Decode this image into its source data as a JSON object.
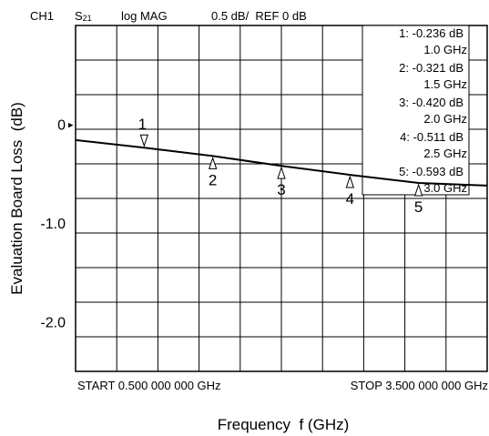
{
  "chart_data": {
    "type": "line",
    "header": {
      "channel": "CH1",
      "param": "S",
      "param_sub": "21",
      "format": "log MAG",
      "scale": "0.5 dB/  REF 0 dB"
    },
    "xlabel": "Frequency  f (GHz)",
    "ylabel": "Evaluation Board Loss  (dB)",
    "xlim": [
      0.5,
      3.5
    ],
    "ylim": [
      -2.5,
      1.0
    ],
    "grid": true,
    "start_label": "START 0.500 000 000 GHz",
    "stop_label": "STOP 3.500 000 000 GHz",
    "y_ticks": [
      {
        "value": 0,
        "label": "0"
      },
      {
        "value": -1.0,
        "label": "-1.0"
      },
      {
        "value": -2.0,
        "label": "-2.0"
      }
    ],
    "ref_marker": "▸",
    "series": [
      {
        "x": [
          0.5,
          1.0,
          1.5,
          2.0,
          2.5,
          3.0,
          3.5
        ],
        "values": [
          -0.16,
          -0.236,
          -0.321,
          -0.42,
          -0.511,
          -0.593,
          -0.62
        ]
      }
    ],
    "markers": [
      {
        "id": "1",
        "x": 1.0,
        "y": -0.236,
        "readout": "1: -0.236 dB",
        "freq": "1.0 GHz",
        "pointer": "down"
      },
      {
        "id": "2",
        "x": 1.5,
        "y": -0.321,
        "readout": "2: -0.321 dB",
        "freq": "1.5 GHz",
        "pointer": "up"
      },
      {
        "id": "3",
        "x": 2.0,
        "y": -0.42,
        "readout": "3: -0.420 dB",
        "freq": "2.0 GHz",
        "pointer": "up"
      },
      {
        "id": "4",
        "x": 2.5,
        "y": -0.511,
        "readout": "4: -0.511 dB",
        "freq": "2.5 GHz",
        "pointer": "up"
      },
      {
        "id": "5",
        "x": 3.0,
        "y": -0.593,
        "readout": "5: -0.593 dB",
        "freq": "3.0 GHz",
        "pointer": "up"
      }
    ]
  }
}
